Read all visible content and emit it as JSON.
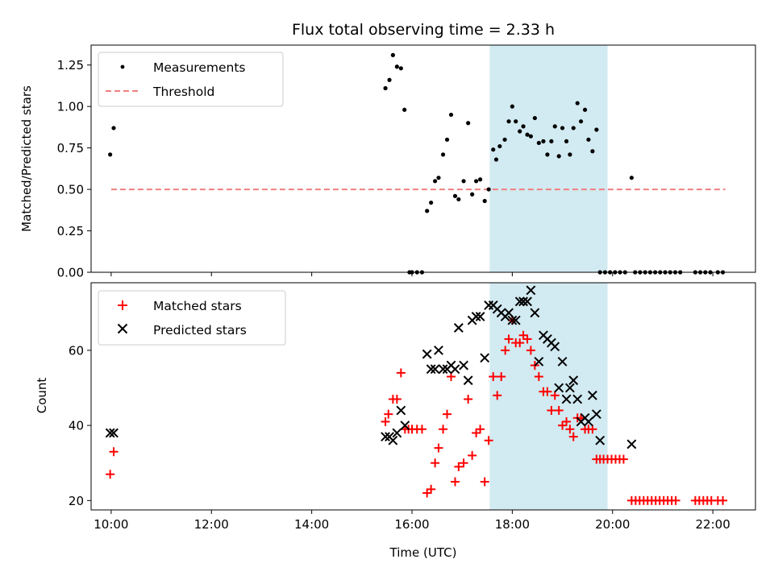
{
  "chart_data": [
    {
      "type": "scatter",
      "title": "Flux total observing time = 2.33 h",
      "xlabel": "",
      "ylabel": "Matched/Predicted stars",
      "xlim": [
        9.6,
        22.85
      ],
      "ylim": [
        0.0,
        1.37
      ],
      "yticks": [
        0.0,
        0.25,
        0.5,
        0.75,
        1.0,
        1.25
      ],
      "xticks": [
        10,
        12,
        14,
        16,
        18,
        20,
        22
      ],
      "legend": {
        "placement": "top-left",
        "entries": [
          "Measurements",
          "Threshold"
        ]
      },
      "shaded_span": {
        "x": [
          17.55,
          19.9
        ],
        "color": "#add8e6"
      },
      "threshold": {
        "name": "Threshold",
        "y": 0.5,
        "x": [
          10.0,
          22.25
        ],
        "color": "#f08080"
      },
      "series": [
        {
          "name": "Measurements",
          "marker": "dot",
          "color": "#000000",
          "points": [
            [
              9.98,
              0.71
            ],
            [
              10.05,
              0.87
            ],
            [
              15.47,
              1.11
            ],
            [
              15.55,
              1.16
            ],
            [
              15.62,
              1.31
            ],
            [
              15.7,
              1.24
            ],
            [
              15.78,
              1.23
            ],
            [
              15.85,
              0.98
            ],
            [
              15.95,
              0.0
            ],
            [
              16.0,
              0.0
            ],
            [
              16.1,
              0.0
            ],
            [
              16.2,
              0.0
            ],
            [
              16.3,
              0.37
            ],
            [
              16.38,
              0.42
            ],
            [
              16.46,
              0.55
            ],
            [
              16.53,
              0.57
            ],
            [
              16.62,
              0.71
            ],
            [
              16.7,
              0.8
            ],
            [
              16.78,
              0.95
            ],
            [
              16.86,
              0.46
            ],
            [
              16.93,
              0.44
            ],
            [
              17.03,
              0.55
            ],
            [
              17.12,
              0.9
            ],
            [
              17.2,
              0.47
            ],
            [
              17.28,
              0.55
            ],
            [
              17.36,
              0.56
            ],
            [
              17.45,
              0.43
            ],
            [
              17.53,
              0.5
            ],
            [
              17.62,
              0.74
            ],
            [
              17.68,
              0.68
            ],
            [
              17.75,
              0.76
            ],
            [
              17.85,
              0.8
            ],
            [
              17.93,
              0.91
            ],
            [
              18.0,
              1.0
            ],
            [
              18.07,
              0.91
            ],
            [
              18.15,
              0.85
            ],
            [
              18.22,
              0.88
            ],
            [
              18.3,
              0.83
            ],
            [
              18.37,
              0.82
            ],
            [
              18.45,
              0.93
            ],
            [
              18.53,
              0.78
            ],
            [
              18.62,
              0.79
            ],
            [
              18.7,
              0.71
            ],
            [
              18.78,
              0.79
            ],
            [
              18.85,
              0.88
            ],
            [
              18.93,
              0.7
            ],
            [
              19.0,
              0.87
            ],
            [
              19.08,
              0.79
            ],
            [
              19.15,
              0.71
            ],
            [
              19.22,
              0.87
            ],
            [
              19.3,
              1.02
            ],
            [
              19.37,
              0.91
            ],
            [
              19.45,
              0.98
            ],
            [
              19.52,
              0.8
            ],
            [
              19.6,
              0.73
            ],
            [
              19.68,
              0.86
            ],
            [
              19.75,
              0.0
            ],
            [
              19.85,
              0.0
            ],
            [
              19.95,
              0.0
            ],
            [
              20.05,
              0.0
            ],
            [
              20.15,
              0.0
            ],
            [
              20.25,
              0.0
            ],
            [
              20.38,
              0.57
            ],
            [
              20.45,
              0.0
            ],
            [
              20.55,
              0.0
            ],
            [
              20.65,
              0.0
            ],
            [
              20.75,
              0.0
            ],
            [
              20.85,
              0.0
            ],
            [
              20.95,
              0.0
            ],
            [
              21.05,
              0.0
            ],
            [
              21.15,
              0.0
            ],
            [
              21.25,
              0.0
            ],
            [
              21.35,
              0.0
            ],
            [
              21.65,
              0.0
            ],
            [
              21.75,
              0.0
            ],
            [
              21.85,
              0.0
            ],
            [
              21.95,
              0.0
            ],
            [
              22.1,
              0.0
            ],
            [
              22.2,
              0.0
            ]
          ]
        }
      ]
    },
    {
      "type": "scatter",
      "title": "",
      "xlabel": "Time (UTC)",
      "ylabel": "Count",
      "xlim": [
        9.6,
        22.85
      ],
      "ylim": [
        17.5,
        78.0
      ],
      "yticks": [
        20,
        40,
        60
      ],
      "xticks": [
        10,
        12,
        14,
        16,
        18,
        20,
        22
      ],
      "xticklabels": [
        "10:00",
        "12:00",
        "14:00",
        "16:00",
        "18:00",
        "20:00",
        "22:00"
      ],
      "legend": {
        "placement": "top-left",
        "entries": [
          "Matched stars",
          "Predicted stars"
        ]
      },
      "shaded_span": {
        "x": [
          17.55,
          19.9
        ],
        "color": "#add8e6"
      },
      "series": [
        {
          "name": "Matched stars",
          "marker": "plus",
          "color": "#ff0000",
          "points": [
            [
              9.98,
              27
            ],
            [
              10.05,
              33
            ],
            [
              15.47,
              41
            ],
            [
              15.53,
              43
            ],
            [
              15.62,
              47
            ],
            [
              15.7,
              47
            ],
            [
              15.78,
              54
            ],
            [
              15.86,
              39
            ],
            [
              15.93,
              39
            ],
            [
              16.0,
              39
            ],
            [
              16.1,
              39
            ],
            [
              16.2,
              39
            ],
            [
              16.3,
              22
            ],
            [
              16.38,
              23
            ],
            [
              16.46,
              30
            ],
            [
              16.53,
              34
            ],
            [
              16.62,
              39
            ],
            [
              16.7,
              43
            ],
            [
              16.78,
              53
            ],
            [
              16.86,
              25
            ],
            [
              16.93,
              29
            ],
            [
              17.03,
              30
            ],
            [
              17.12,
              47
            ],
            [
              17.2,
              32
            ],
            [
              17.28,
              38
            ],
            [
              17.36,
              39
            ],
            [
              17.45,
              25
            ],
            [
              17.53,
              36
            ],
            [
              17.62,
              53
            ],
            [
              17.7,
              48
            ],
            [
              17.78,
              53
            ],
            [
              17.86,
              60
            ],
            [
              17.93,
              63
            ],
            [
              18.0,
              68
            ],
            [
              18.07,
              62
            ],
            [
              18.15,
              62
            ],
            [
              18.22,
              64
            ],
            [
              18.3,
              63
            ],
            [
              18.37,
              60
            ],
            [
              18.45,
              56
            ],
            [
              18.53,
              53
            ],
            [
              18.62,
              49
            ],
            [
              18.7,
              49
            ],
            [
              18.78,
              44
            ],
            [
              18.85,
              48
            ],
            [
              18.93,
              44
            ],
            [
              19.0,
              40
            ],
            [
              19.08,
              41
            ],
            [
              19.15,
              39
            ],
            [
              19.22,
              37
            ],
            [
              19.3,
              42
            ],
            [
              19.37,
              42
            ],
            [
              19.45,
              39
            ],
            [
              19.52,
              39
            ],
            [
              19.6,
              39
            ],
            [
              19.68,
              31
            ],
            [
              19.75,
              31
            ],
            [
              19.82,
              31
            ],
            [
              19.9,
              31
            ],
            [
              19.98,
              31
            ],
            [
              20.06,
              31
            ],
            [
              20.14,
              31
            ],
            [
              20.22,
              31
            ],
            [
              20.38,
              20
            ],
            [
              20.46,
              20
            ],
            [
              20.54,
              20
            ],
            [
              20.62,
              20
            ],
            [
              20.7,
              20
            ],
            [
              20.78,
              20
            ],
            [
              20.86,
              20
            ],
            [
              20.94,
              20
            ],
            [
              21.02,
              20
            ],
            [
              21.1,
              20
            ],
            [
              21.18,
              20
            ],
            [
              21.26,
              20
            ],
            [
              21.65,
              20
            ],
            [
              21.73,
              20
            ],
            [
              21.81,
              20
            ],
            [
              21.89,
              20
            ],
            [
              21.97,
              20
            ],
            [
              22.1,
              20
            ],
            [
              22.2,
              20
            ]
          ]
        },
        {
          "name": "Predicted stars",
          "marker": "x",
          "color": "#000000",
          "points": [
            [
              9.98,
              38
            ],
            [
              10.05,
              38
            ],
            [
              15.47,
              37
            ],
            [
              15.55,
              37
            ],
            [
              15.62,
              36
            ],
            [
              15.7,
              38
            ],
            [
              15.78,
              44
            ],
            [
              15.86,
              40
            ],
            [
              16.3,
              59
            ],
            [
              16.38,
              55
            ],
            [
              16.46,
              55
            ],
            [
              16.53,
              60
            ],
            [
              16.62,
              55
            ],
            [
              16.7,
              55
            ],
            [
              16.78,
              56
            ],
            [
              16.86,
              55
            ],
            [
              16.93,
              66
            ],
            [
              17.03,
              56
            ],
            [
              17.12,
              52
            ],
            [
              17.2,
              68
            ],
            [
              17.28,
              69
            ],
            [
              17.36,
              69
            ],
            [
              17.45,
              58
            ],
            [
              17.53,
              72
            ],
            [
              17.62,
              72
            ],
            [
              17.7,
              71
            ],
            [
              17.78,
              70
            ],
            [
              17.86,
              69
            ],
            [
              17.93,
              70
            ],
            [
              18.0,
              68
            ],
            [
              18.07,
              68
            ],
            [
              18.15,
              73
            ],
            [
              18.22,
              73
            ],
            [
              18.3,
              73
            ],
            [
              18.37,
              76
            ],
            [
              18.45,
              70
            ],
            [
              18.53,
              57
            ],
            [
              18.62,
              64
            ],
            [
              18.7,
              63
            ],
            [
              18.78,
              62
            ],
            [
              18.85,
              61
            ],
            [
              18.93,
              50
            ],
            [
              19.0,
              57
            ],
            [
              19.08,
              47
            ],
            [
              19.15,
              50
            ],
            [
              19.22,
              52
            ],
            [
              19.3,
              47
            ],
            [
              19.37,
              41
            ],
            [
              19.45,
              42
            ],
            [
              19.52,
              41
            ],
            [
              19.6,
              48
            ],
            [
              19.68,
              43
            ],
            [
              19.75,
              36
            ],
            [
              20.38,
              35
            ]
          ]
        }
      ]
    }
  ]
}
